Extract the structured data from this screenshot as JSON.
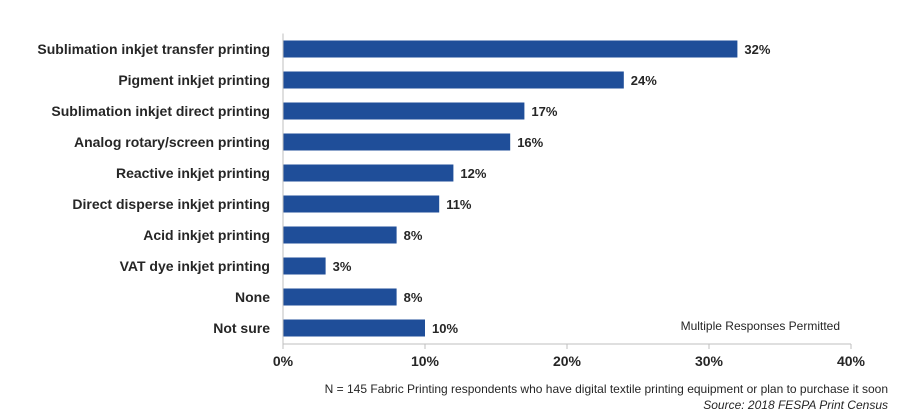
{
  "chart_data": {
    "type": "bar",
    "orientation": "horizontal",
    "categories": [
      "Sublimation inkjet transfer printing",
      "Pigment inkjet printing",
      "Sublimation inkjet direct printing",
      "Analog rotary/screen printing",
      "Reactive inkjet printing",
      "Direct disperse inkjet printing",
      "Acid inkjet printing",
      "VAT dye inkjet printing",
      "None",
      "Not sure"
    ],
    "values": [
      32,
      24,
      17,
      16,
      12,
      11,
      8,
      3,
      8,
      10
    ],
    "value_labels": [
      "32%",
      "24%",
      "17%",
      "16%",
      "12%",
      "11%",
      "8%",
      "3%",
      "8%",
      "10%"
    ],
    "xlim": [
      0,
      40
    ],
    "x_ticks": [
      0,
      10,
      20,
      30,
      40
    ],
    "x_tick_labels": [
      "0%",
      "10%",
      "20%",
      "30%",
      "40%"
    ],
    "bar_color": "#1f4e99",
    "grid": false,
    "annotation": "Multiple Responses Permitted",
    "annotation_placement": "bottom-right",
    "footnote": "N = 145 Fabric Printing respondents who have digital textile printing equipment or plan to purchase it soon",
    "source": "Source: 2018 FESPA Print Census"
  }
}
